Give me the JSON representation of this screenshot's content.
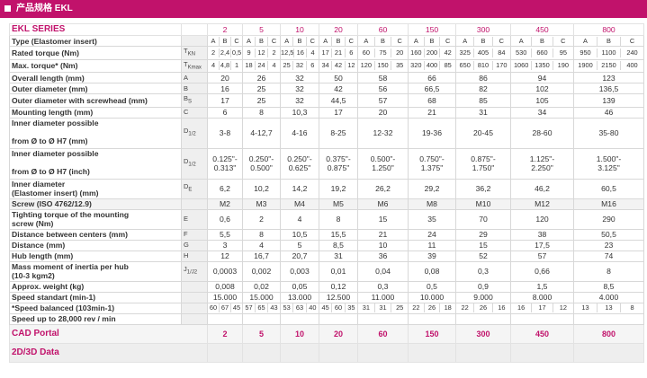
{
  "banner": {
    "title": "产品规格 EKL"
  },
  "series_label": "EKL SERIES",
  "sizes": [
    "2",
    "5",
    "10",
    "20",
    "60",
    "150",
    "300",
    "450",
    "800"
  ],
  "abc_labels": [
    "A",
    "B",
    "C"
  ],
  "rows": {
    "type": {
      "label": "Type (Elastomer insert)"
    },
    "rated": {
      "label": "Rated torque (Nm)",
      "sym": "TKN",
      "vals": [
        [
          "2",
          "2,4",
          "0,5"
        ],
        [
          "9",
          "12",
          "2"
        ],
        [
          "12,5",
          "16",
          "4"
        ],
        [
          "17",
          "21",
          "6"
        ],
        [
          "60",
          "75",
          "20"
        ],
        [
          "160",
          "200",
          "42"
        ],
        [
          "325",
          "405",
          "84"
        ],
        [
          "530",
          "660",
          "95"
        ],
        [
          "950",
          "1100",
          "240"
        ]
      ]
    },
    "max": {
      "label": "Max. torque* (Nm)",
      "sym": "TKmax",
      "vals": [
        [
          "4",
          "4,8",
          "1"
        ],
        [
          "18",
          "24",
          "4"
        ],
        [
          "25",
          "32",
          "6"
        ],
        [
          "34",
          "42",
          "12"
        ],
        [
          "120",
          "150",
          "35"
        ],
        [
          "320",
          "400",
          "85"
        ],
        [
          "650",
          "810",
          "170"
        ],
        [
          "1060",
          "1350",
          "190"
        ],
        [
          "1900",
          "2150",
          "400"
        ]
      ]
    },
    "overall": {
      "label": "Overall length (mm)",
      "sym": "A",
      "vals": [
        "20",
        "26",
        "32",
        "50",
        "58",
        "66",
        "86",
        "94",
        "123"
      ]
    },
    "outer": {
      "label": "Outer diameter (mm)",
      "sym": "B",
      "vals": [
        "16",
        "25",
        "32",
        "42",
        "56",
        "66,5",
        "82",
        "102",
        "136,5"
      ]
    },
    "outer_screw": {
      "label": "Outer diameter with screwhead (mm)",
      "sym": "BS",
      "vals": [
        "17",
        "25",
        "32",
        "44,5",
        "57",
        "68",
        "85",
        "105",
        "139"
      ]
    },
    "mounting": {
      "label": "Mounting length (mm)",
      "sym": "C",
      "vals": [
        "6",
        "8",
        "10,3",
        "17",
        "20",
        "21",
        "31",
        "34",
        "46"
      ]
    },
    "inner_mm": {
      "label1": "Inner diameter possible",
      "label2": "from Ø to Ø H7 (mm)",
      "sym": "D1/2",
      "vals": [
        "3-8",
        "4-12,7",
        "4-16",
        "8-25",
        "12-32",
        "19-36",
        "20-45",
        "28-60",
        "35-80"
      ]
    },
    "inner_in": {
      "label1": "Inner diameter possible",
      "label2": "from Ø to Ø H7 (inch)",
      "sym": "D1/2",
      "vals": [
        [
          "0.125\"-",
          "0.313\""
        ],
        [
          "0.250\"-",
          "0.500\""
        ],
        [
          "0.250\"-",
          "0.625\""
        ],
        [
          "0.375\"-",
          "0.875\""
        ],
        [
          "0.500\"-",
          "1.250\""
        ],
        [
          "0.750\"-",
          "1.375\""
        ],
        [
          "0.875\"-",
          "1.750\""
        ],
        [
          "1.125\"-",
          "2.250\""
        ],
        [
          "1.500\"-",
          "3.125\""
        ]
      ]
    },
    "inner_elast": {
      "label1": "Inner diameter",
      "label2": "(Elastomer insert) (mm)",
      "sym": "DE",
      "vals": [
        "6,2",
        "10,2",
        "14,2",
        "19,2",
        "26,2",
        "29,2",
        "36,2",
        "46,2",
        "60,5"
      ]
    },
    "screw": {
      "label": "Screw (ISO 4762/12.9)",
      "vals": [
        "M2",
        "M3",
        "M4",
        "M5",
        "M6",
        "M8",
        "M10",
        "M12",
        "M16"
      ]
    },
    "tighten": {
      "label1": "Tighting torque of the mounting",
      "label2": "screw (Nm)",
      "sym": "E",
      "vals": [
        "0,6",
        "2",
        "4",
        "8",
        "15",
        "35",
        "70",
        "120",
        "290"
      ]
    },
    "centers": {
      "label": "Distance between centers (mm)",
      "sym": "F",
      "vals": [
        "5,5",
        "8",
        "10,5",
        "15,5",
        "21",
        "24",
        "29",
        "38",
        "50,5"
      ]
    },
    "distance": {
      "label": "Distance (mm)",
      "sym": "G",
      "vals": [
        "3",
        "4",
        "5",
        "8,5",
        "10",
        "11",
        "15",
        "17,5",
        "23"
      ]
    },
    "hub": {
      "label": "Hub length (mm)",
      "sym": "H",
      "vals": [
        "12",
        "16,7",
        "20,7",
        "31",
        "36",
        "39",
        "52",
        "57",
        "74"
      ]
    },
    "inertia": {
      "label1": "Mass moment of inertia per hub",
      "label2": "(10-3 kgm2)",
      "sym": "J1/J2",
      "vals": [
        "0,0003",
        "0,002",
        "0,003",
        "0,01",
        "0,04",
        "0,08",
        "0,3",
        "0,66",
        "8"
      ]
    },
    "weight": {
      "label": "Approx. weight (kg)",
      "vals": [
        "0,008",
        "0,02",
        "0,05",
        "0,12",
        "0,3",
        "0,5",
        "0,9",
        "1,5",
        "8,5"
      ]
    },
    "speed_std": {
      "label": "Speed standart (min-1)",
      "vals": [
        "15.000",
        "15.000",
        "13.000",
        "12.500",
        "11.000",
        "10.000",
        "9.000",
        "8.000",
        "4.000"
      ]
    },
    "speed_bal": {
      "label": "*Speed balanced (103min-1)",
      "vals": [
        [
          "60",
          "67",
          "45"
        ],
        [
          "57",
          "65",
          "43"
        ],
        [
          "53",
          "63",
          "40"
        ],
        [
          "45",
          "60",
          "35"
        ],
        [
          "31",
          "31",
          "25"
        ],
        [
          "22",
          "26",
          "18"
        ],
        [
          "22",
          "26",
          "16"
        ],
        [
          "16",
          "17",
          "12"
        ],
        [
          "13",
          "13",
          "8"
        ]
      ]
    },
    "speed_up": {
      "label": "Speed up to 28,000 rev / min"
    }
  },
  "cad_portal": {
    "label": "CAD Portal",
    "vals": [
      "2",
      "5",
      "10",
      "20",
      "60",
      "150",
      "300",
      "450",
      "800"
    ]
  },
  "data_2d3d": {
    "label": "2D/3D Data"
  }
}
